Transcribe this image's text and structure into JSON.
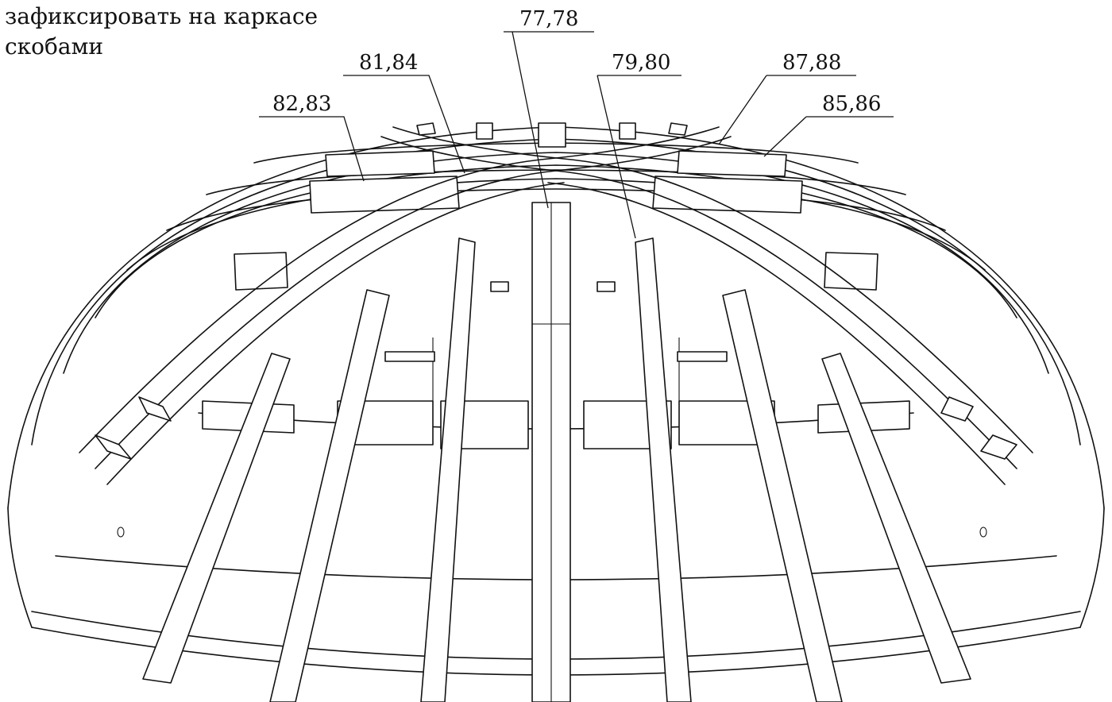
{
  "note": {
    "line1": "зафиксировать на каркасе",
    "line2": "скобами"
  },
  "callouts": [
    {
      "id": "c1",
      "label": "77,78"
    },
    {
      "id": "c2",
      "label": "81,84"
    },
    {
      "id": "c3",
      "label": "79,80"
    },
    {
      "id": "c4",
      "label": "87,88"
    },
    {
      "id": "c5",
      "label": "82,83"
    },
    {
      "id": "c6",
      "label": "85,86"
    }
  ]
}
